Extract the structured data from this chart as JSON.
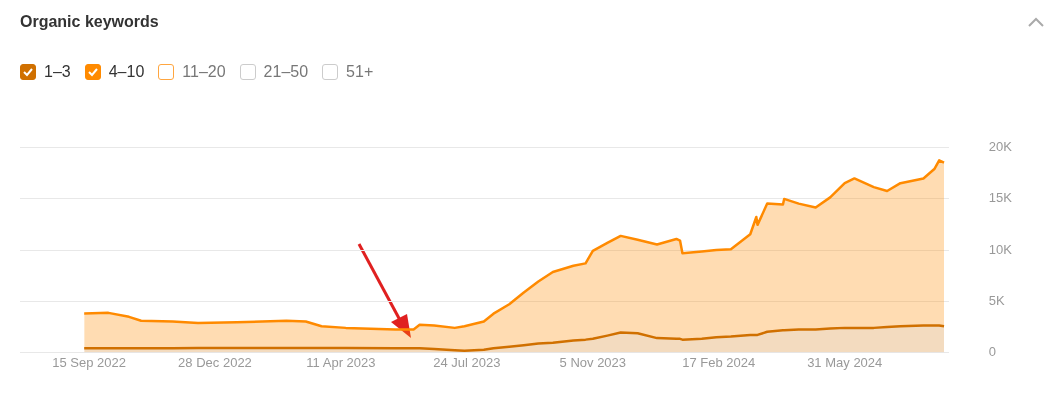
{
  "chart_data": {
    "type": "area",
    "title": "Organic keywords",
    "stacked": true,
    "legend": "top left",
    "grid": "y",
    "x": [
      "2022-09-11",
      "2022-10-01",
      "2022-10-18",
      "2022-10-28",
      "2022-11-23",
      "2022-12-14",
      "2023-01-15",
      "2023-02-25",
      "2023-03-13",
      "2023-03-26",
      "2023-04-15",
      "2023-05-26",
      "2023-06-10",
      "2023-06-15",
      "2023-06-27",
      "2023-07-14",
      "2023-07-22",
      "2023-08-07",
      "2023-08-15",
      "2023-08-28",
      "2023-09-09",
      "2023-09-21",
      "2023-10-03",
      "2023-10-20",
      "2023-10-30",
      "2023-11-05",
      "2023-11-17",
      "2023-11-28",
      "2023-12-12",
      "2023-12-28",
      "2024-01-13",
      "2024-01-16",
      "2024-01-18",
      "2024-02-03",
      "2024-02-15",
      "2024-02-27",
      "2024-03-14",
      "2024-03-19",
      "2024-03-20",
      "2024-03-28",
      "2024-04-10",
      "2024-04-11",
      "2024-04-23",
      "2024-05-07",
      "2024-05-19",
      "2024-05-31",
      "2024-06-08",
      "2024-06-24",
      "2024-07-05",
      "2024-07-16",
      "2024-08-04",
      "2024-08-13",
      "2024-08-17",
      "2024-08-21"
    ],
    "series": [
      {
        "name": "1–3",
        "color": "#d07000",
        "values": [
          380,
          380,
          380,
          380,
          380,
          420,
          420,
          420,
          420,
          420,
          420,
          380,
          380,
          380,
          310,
          190,
          150,
          230,
          380,
          540,
          690,
          850,
          920,
          1150,
          1230,
          1310,
          1620,
          1920,
          1850,
          1380,
          1310,
          1310,
          1230,
          1310,
          1460,
          1540,
          1690,
          1690,
          1690,
          2000,
          2150,
          2150,
          2230,
          2230,
          2310,
          2380,
          2380,
          2380,
          2460,
          2540,
          2620,
          2620,
          2620,
          2540
        ]
      },
      {
        "name": "4–10",
        "color": "#ff8a00",
        "values": [
          3410,
          3470,
          3080,
          2700,
          2620,
          2430,
          2500,
          2660,
          2580,
          2120,
          1960,
          1850,
          1850,
          2310,
          2310,
          2190,
          2390,
          2770,
          3390,
          4150,
          5160,
          6070,
          6930,
          7310,
          7460,
          8610,
          9070,
          9460,
          9150,
          9160,
          9770,
          9610,
          8460,
          8540,
          8540,
          8540,
          9850,
          11540,
          10770,
          12540,
          12310,
          12850,
          12310,
          11920,
          12840,
          14160,
          14620,
          13770,
          13310,
          14000,
          14380,
          15300,
          16150,
          16000
        ]
      },
      {
        "name": "11–20",
        "color": "#ffa640",
        "values": [
          null,
          null,
          null,
          null,
          null,
          null,
          null,
          null,
          null,
          null,
          null,
          null,
          null,
          null,
          null,
          null,
          null,
          null,
          null,
          null,
          null,
          null,
          null,
          null,
          null,
          null,
          null,
          null,
          null,
          null,
          null,
          null,
          null,
          null,
          null,
          null,
          null,
          null,
          null,
          null,
          null,
          null,
          null,
          null,
          null,
          null,
          null,
          null,
          null,
          null,
          null,
          null,
          null,
          null
        ]
      },
      {
        "name": "21–50",
        "color": "#cccccc",
        "values": [
          null,
          null,
          null,
          null,
          null,
          null,
          null,
          null,
          null,
          null,
          null,
          null,
          null,
          null,
          null,
          null,
          null,
          null,
          null,
          null,
          null,
          null,
          null,
          null,
          null,
          null,
          null,
          null,
          null,
          null,
          null,
          null,
          null,
          null,
          null,
          null,
          null,
          null,
          null,
          null,
          null,
          null,
          null,
          null,
          null,
          null,
          null,
          null,
          null,
          null,
          null,
          null,
          null,
          null
        ]
      },
      {
        "name": "51+",
        "color": "#cccccc",
        "values": [
          null,
          null,
          null,
          null,
          null,
          null,
          null,
          null,
          null,
          null,
          null,
          null,
          null,
          null,
          null,
          null,
          null,
          null,
          null,
          null,
          null,
          null,
          null,
          null,
          null,
          null,
          null,
          null,
          null,
          null,
          null,
          null,
          null,
          null,
          null,
          null,
          null,
          null,
          null,
          null,
          null,
          null,
          null,
          null,
          null,
          null,
          null,
          null,
          null,
          null,
          null,
          null,
          null,
          null
        ]
      }
    ],
    "xlim": [
      "2022-07-20",
      "2024-08-25"
    ],
    "xticks": [
      {
        "value": "2022-09-15",
        "label": "15 Sep 2022"
      },
      {
        "value": "2022-12-28",
        "label": "28 Dec 2022"
      },
      {
        "value": "2023-04-11",
        "label": "11 Apr 2023"
      },
      {
        "value": "2023-07-24",
        "label": "24 Jul 2023"
      },
      {
        "value": "2023-11-05",
        "label": "5 Nov 2023"
      },
      {
        "value": "2024-02-17",
        "label": "17 Feb 2024"
      },
      {
        "value": "2024-05-31",
        "label": "31 May 2024"
      }
    ],
    "ylim": [
      0,
      20000
    ],
    "yticks": [
      0,
      {
        "value": 5000,
        "label": "5K"
      },
      {
        "value": 10000,
        "label": "10K"
      },
      {
        "value": 15000,
        "label": "15K"
      },
      {
        "value": 20000,
        "label": "20K"
      }
    ]
  }
}
